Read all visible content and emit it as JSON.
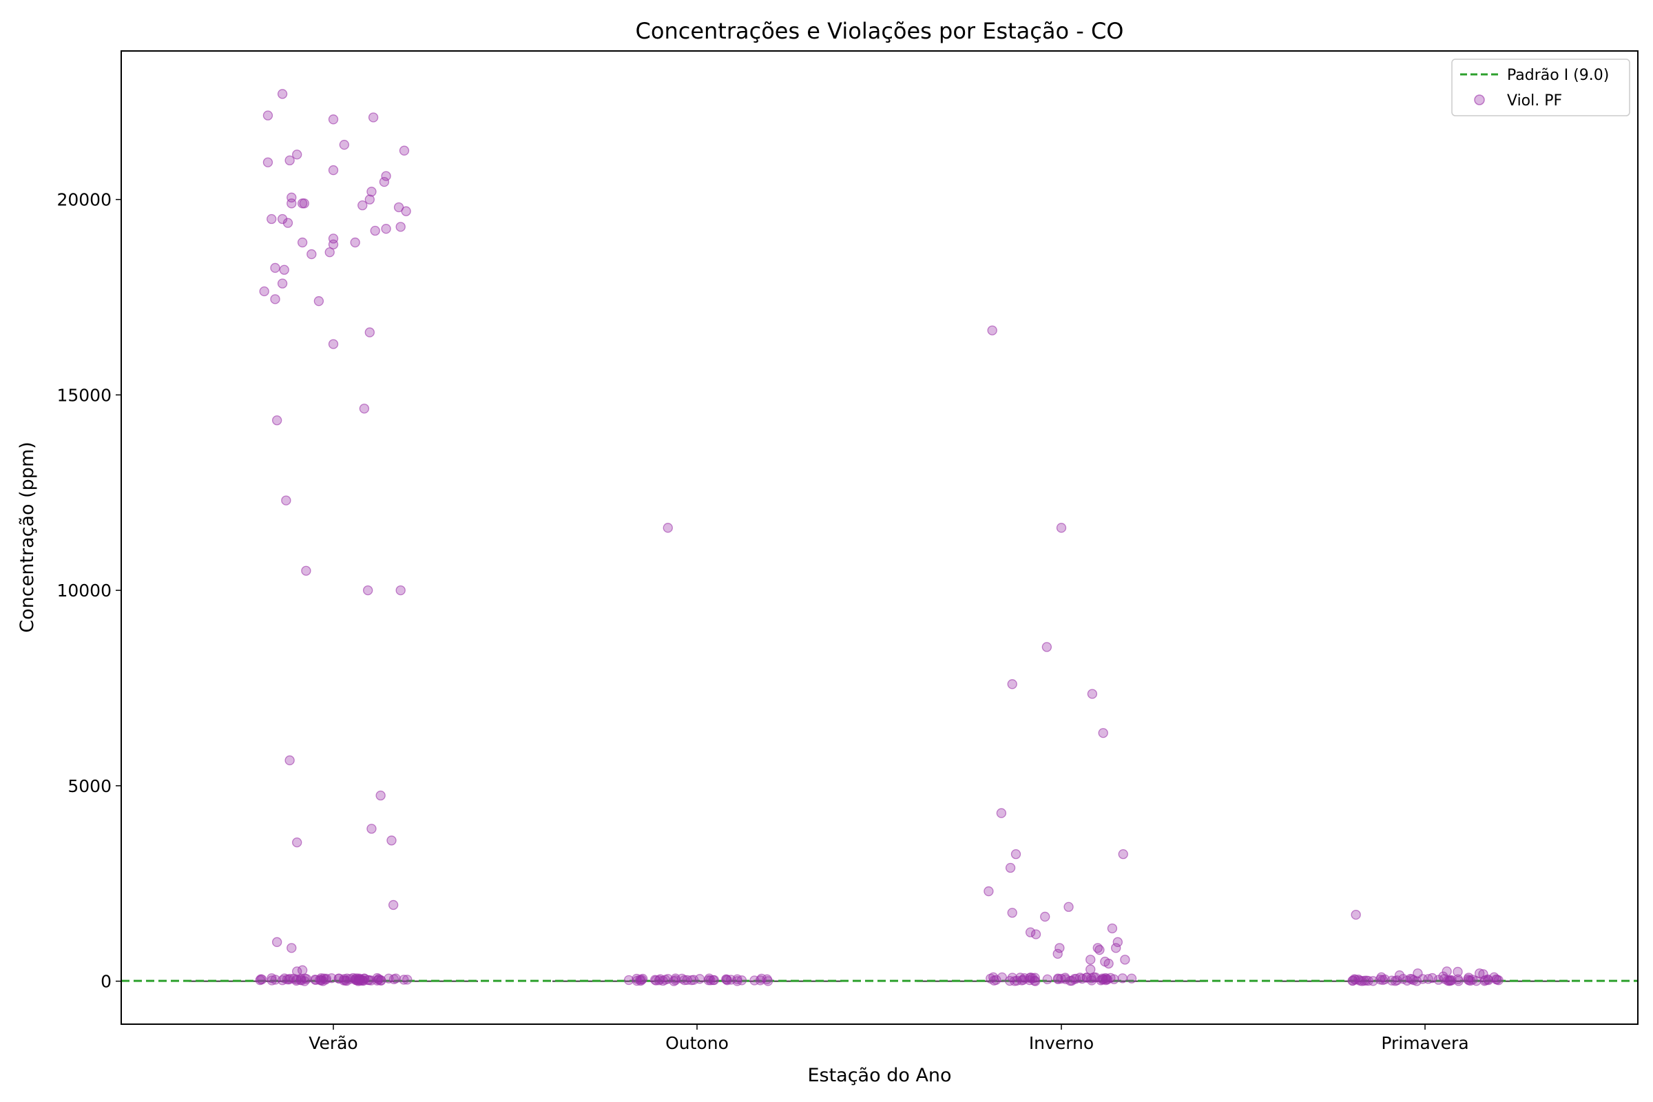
{
  "chart_data": {
    "type": "scatter",
    "title": "Concentrações e Violações por Estação - CO",
    "xlabel": "Estação do Ano",
    "ylabel": "Concentração (ppm)",
    "categories": [
      "Verão",
      "Outono",
      "Inverno",
      "Primavera"
    ],
    "ylim": [
      -1100,
      23800
    ],
    "yticks": [
      0,
      5000,
      10000,
      15000,
      20000
    ],
    "grid": false,
    "legend_position": "top-right",
    "reference_line": {
      "name": "Padrão I (9.0)",
      "value": 9.0,
      "color": "#2ca02c",
      "style": "dashed"
    },
    "series": [
      {
        "name": "Viol. PF",
        "color": "#9b30a8",
        "points": [
          {
            "cat": "Verão",
            "jitter": -0.19,
            "y": 17650
          },
          {
            "cat": "Verão",
            "jitter": -0.18,
            "y": 20950
          },
          {
            "cat": "Verão",
            "jitter": -0.18,
            "y": 22150
          },
          {
            "cat": "Verão",
            "jitter": -0.17,
            "y": 19500
          },
          {
            "cat": "Verão",
            "jitter": -0.16,
            "y": 18250
          },
          {
            "cat": "Verão",
            "jitter": -0.16,
            "y": 17450
          },
          {
            "cat": "Verão",
            "jitter": -0.155,
            "y": 14350
          },
          {
            "cat": "Verão",
            "jitter": -0.155,
            "y": 1000
          },
          {
            "cat": "Verão",
            "jitter": -0.14,
            "y": 22700
          },
          {
            "cat": "Verão",
            "jitter": -0.14,
            "y": 19500
          },
          {
            "cat": "Verão",
            "jitter": -0.14,
            "y": 17850
          },
          {
            "cat": "Verão",
            "jitter": -0.135,
            "y": 18200
          },
          {
            "cat": "Verão",
            "jitter": -0.13,
            "y": 12300
          },
          {
            "cat": "Verão",
            "jitter": -0.125,
            "y": 19400
          },
          {
            "cat": "Verão",
            "jitter": -0.12,
            "y": 21000
          },
          {
            "cat": "Verão",
            "jitter": -0.12,
            "y": 5650
          },
          {
            "cat": "Verão",
            "jitter": -0.115,
            "y": 20050
          },
          {
            "cat": "Verão",
            "jitter": -0.115,
            "y": 19900
          },
          {
            "cat": "Verão",
            "jitter": -0.115,
            "y": 850
          },
          {
            "cat": "Verão",
            "jitter": -0.1,
            "y": 21150
          },
          {
            "cat": "Verão",
            "jitter": -0.1,
            "y": 3550
          },
          {
            "cat": "Verão",
            "jitter": -0.1,
            "y": 250
          },
          {
            "cat": "Verão",
            "jitter": -0.085,
            "y": 19900
          },
          {
            "cat": "Verão",
            "jitter": -0.085,
            "y": 18900
          },
          {
            "cat": "Verão",
            "jitter": -0.085,
            "y": 280
          },
          {
            "cat": "Verão",
            "jitter": -0.08,
            "y": 19900
          },
          {
            "cat": "Verão",
            "jitter": -0.075,
            "y": 10500
          },
          {
            "cat": "Verão",
            "jitter": -0.06,
            "y": 18600
          },
          {
            "cat": "Verão",
            "jitter": -0.04,
            "y": 17400
          },
          {
            "cat": "Verão",
            "jitter": -0.01,
            "y": 18650
          },
          {
            "cat": "Verão",
            "jitter": 0.0,
            "y": 22050
          },
          {
            "cat": "Verão",
            "jitter": 0.0,
            "y": 20750
          },
          {
            "cat": "Verão",
            "jitter": 0.0,
            "y": 19000
          },
          {
            "cat": "Verão",
            "jitter": 0.0,
            "y": 18850
          },
          {
            "cat": "Verão",
            "jitter": 0.0,
            "y": 16300
          },
          {
            "cat": "Verão",
            "jitter": 0.03,
            "y": 21400
          },
          {
            "cat": "Verão",
            "jitter": 0.06,
            "y": 18900
          },
          {
            "cat": "Verão",
            "jitter": 0.08,
            "y": 19850
          },
          {
            "cat": "Verão",
            "jitter": 0.085,
            "y": 14650
          },
          {
            "cat": "Verão",
            "jitter": 0.095,
            "y": 10000
          },
          {
            "cat": "Verão",
            "jitter": 0.1,
            "y": 20000
          },
          {
            "cat": "Verão",
            "jitter": 0.1,
            "y": 16600
          },
          {
            "cat": "Verão",
            "jitter": 0.105,
            "y": 20200
          },
          {
            "cat": "Verão",
            "jitter": 0.105,
            "y": 3900
          },
          {
            "cat": "Verão",
            "jitter": 0.11,
            "y": 22100
          },
          {
            "cat": "Verão",
            "jitter": 0.115,
            "y": 19200
          },
          {
            "cat": "Verão",
            "jitter": 0.13,
            "y": 4750
          },
          {
            "cat": "Verão",
            "jitter": 0.14,
            "y": 20450
          },
          {
            "cat": "Verão",
            "jitter": 0.145,
            "y": 20600
          },
          {
            "cat": "Verão",
            "jitter": 0.145,
            "y": 19250
          },
          {
            "cat": "Verão",
            "jitter": 0.16,
            "y": 3600
          },
          {
            "cat": "Verão",
            "jitter": 0.165,
            "y": 1950
          },
          {
            "cat": "Verão",
            "jitter": 0.18,
            "y": 19800
          },
          {
            "cat": "Verão",
            "jitter": 0.185,
            "y": 19300
          },
          {
            "cat": "Verão",
            "jitter": 0.185,
            "y": 10000
          },
          {
            "cat": "Verão",
            "jitter": 0.195,
            "y": 21250
          },
          {
            "cat": "Verão",
            "jitter": 0.2,
            "y": 19700
          },
          {
            "cat": "Outono",
            "jitter": -0.08,
            "y": 11600
          },
          {
            "cat": "Inverno",
            "jitter": -0.2,
            "y": 2300
          },
          {
            "cat": "Inverno",
            "jitter": -0.19,
            "y": 16650
          },
          {
            "cat": "Inverno",
            "jitter": -0.165,
            "y": 4300
          },
          {
            "cat": "Inverno",
            "jitter": -0.14,
            "y": 2900
          },
          {
            "cat": "Inverno",
            "jitter": -0.135,
            "y": 7600
          },
          {
            "cat": "Inverno",
            "jitter": -0.135,
            "y": 1750
          },
          {
            "cat": "Inverno",
            "jitter": -0.125,
            "y": 3250
          },
          {
            "cat": "Inverno",
            "jitter": -0.085,
            "y": 1250
          },
          {
            "cat": "Inverno",
            "jitter": -0.07,
            "y": 1200
          },
          {
            "cat": "Inverno",
            "jitter": -0.045,
            "y": 1650
          },
          {
            "cat": "Inverno",
            "jitter": -0.04,
            "y": 8550
          },
          {
            "cat": "Inverno",
            "jitter": -0.01,
            "y": 700
          },
          {
            "cat": "Inverno",
            "jitter": -0.005,
            "y": 850
          },
          {
            "cat": "Inverno",
            "jitter": 0.0,
            "y": 11600
          },
          {
            "cat": "Inverno",
            "jitter": 0.02,
            "y": 1900
          },
          {
            "cat": "Inverno",
            "jitter": 0.08,
            "y": 550
          },
          {
            "cat": "Inverno",
            "jitter": 0.08,
            "y": 300
          },
          {
            "cat": "Inverno",
            "jitter": 0.085,
            "y": 7350
          },
          {
            "cat": "Inverno",
            "jitter": 0.1,
            "y": 850
          },
          {
            "cat": "Inverno",
            "jitter": 0.105,
            "y": 800
          },
          {
            "cat": "Inverno",
            "jitter": 0.115,
            "y": 6350
          },
          {
            "cat": "Inverno",
            "jitter": 0.12,
            "y": 500
          },
          {
            "cat": "Inverno",
            "jitter": 0.13,
            "y": 450
          },
          {
            "cat": "Inverno",
            "jitter": 0.14,
            "y": 1350
          },
          {
            "cat": "Inverno",
            "jitter": 0.15,
            "y": 850
          },
          {
            "cat": "Inverno",
            "jitter": 0.155,
            "y": 1000
          },
          {
            "cat": "Inverno",
            "jitter": 0.17,
            "y": 3250
          },
          {
            "cat": "Inverno",
            "jitter": 0.175,
            "y": 550
          },
          {
            "cat": "Primavera",
            "jitter": -0.19,
            "y": 1700
          },
          {
            "cat": "Primavera",
            "jitter": -0.12,
            "y": 100
          },
          {
            "cat": "Primavera",
            "jitter": -0.07,
            "y": 150
          },
          {
            "cat": "Primavera",
            "jitter": -0.04,
            "y": 60
          },
          {
            "cat": "Primavera",
            "jitter": -0.02,
            "y": 200
          },
          {
            "cat": "Primavera",
            "jitter": 0.02,
            "y": 80
          },
          {
            "cat": "Primavera",
            "jitter": 0.05,
            "y": 120
          },
          {
            "cat": "Primavera",
            "jitter": 0.06,
            "y": 250
          },
          {
            "cat": "Primavera",
            "jitter": 0.09,
            "y": 240
          },
          {
            "cat": "Primavera",
            "jitter": 0.12,
            "y": 90
          },
          {
            "cat": "Primavera",
            "jitter": 0.15,
            "y": 200
          },
          {
            "cat": "Primavera",
            "jitter": 0.16,
            "y": 180
          },
          {
            "cat": "Primavera",
            "jitter": 0.19,
            "y": 100
          }
        ],
        "near_zero_clusters": [
          {
            "cat": "Verão",
            "count": 70,
            "ymax": 80
          },
          {
            "cat": "Outono",
            "count": 40,
            "ymax": 70
          },
          {
            "cat": "Inverno",
            "count": 50,
            "ymax": 100
          },
          {
            "cat": "Primavera",
            "count": 45,
            "ymax": 60
          }
        ]
      }
    ]
  }
}
